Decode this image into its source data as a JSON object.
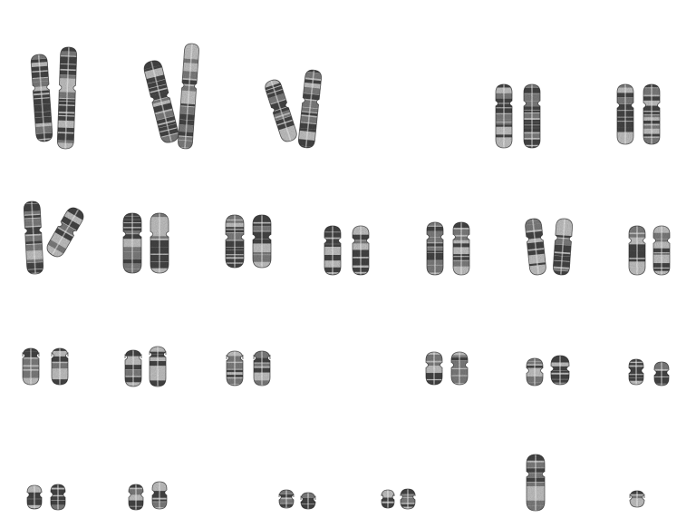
{
  "image": {
    "type": "karyogram",
    "background": "#ffffff",
    "stain_dark": "#3a3a3a",
    "stain_mid": "#7a7a7a",
    "stain_light": "#c9c9c9",
    "rows": [
      {
        "pairs": [
          {
            "name": "chromosome-pair-1",
            "count": 2
          },
          {
            "name": "chromosome-pair-2",
            "count": 2
          },
          {
            "name": "chromosome-pair-3",
            "count": 2
          },
          {
            "name": "chromosome-pair-4",
            "count": 2
          },
          {
            "name": "chromosome-pair-5",
            "count": 2
          }
        ]
      },
      {
        "pairs": [
          {
            "name": "chromosome-pair-6",
            "count": 2
          },
          {
            "name": "chromosome-pair-7",
            "count": 2
          },
          {
            "name": "chromosome-pair-8",
            "count": 2
          },
          {
            "name": "chromosome-pair-9",
            "count": 2
          },
          {
            "name": "chromosome-pair-10",
            "count": 2
          },
          {
            "name": "chromosome-pair-11",
            "count": 2
          },
          {
            "name": "chromosome-pair-12",
            "count": 2
          }
        ]
      },
      {
        "pairs": [
          {
            "name": "chromosome-pair-13",
            "count": 2
          },
          {
            "name": "chromosome-pair-14",
            "count": 2
          },
          {
            "name": "chromosome-pair-15",
            "count": 2
          },
          {
            "name": "chromosome-pair-16",
            "count": 2
          },
          {
            "name": "chromosome-pair-17",
            "count": 2
          },
          {
            "name": "chromosome-pair-18",
            "count": 2
          }
        ]
      },
      {
        "pairs": [
          {
            "name": "chromosome-pair-19",
            "count": 2
          },
          {
            "name": "chromosome-pair-20",
            "count": 2
          },
          {
            "name": "chromosome-pair-21",
            "count": 2
          },
          {
            "name": "chromosome-pair-22",
            "count": 2
          },
          {
            "name": "chromosome-x",
            "count": 1
          },
          {
            "name": "chromosome-y",
            "count": 1
          }
        ]
      }
    ]
  }
}
